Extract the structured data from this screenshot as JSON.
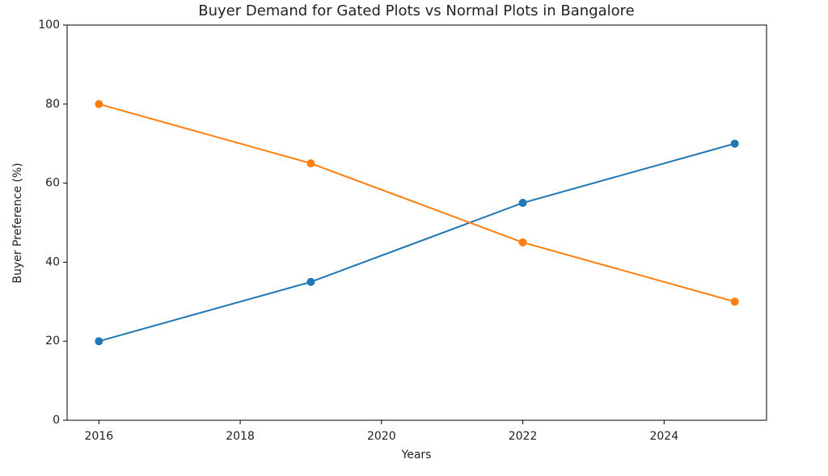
{
  "chart_data": {
    "type": "line",
    "title": "Buyer Demand for Gated Plots vs Normal Plots in Bangalore",
    "x_label": "Years",
    "y_label": "Buyer Preference (%)",
    "x": [
      2016,
      2019,
      2022,
      2025
    ],
    "series": [
      {
        "color": "#1f77b4",
        "values": [
          20,
          35,
          55,
          70
        ]
      },
      {
        "color": "#ff7f0e",
        "values": [
          80,
          65,
          45,
          30
        ]
      }
    ],
    "xlim": [
      2015.55,
      2025.45
    ],
    "xticks": [
      2016,
      2018,
      2020,
      2022,
      2024
    ],
    "ylim": [
      0,
      100
    ],
    "yticks": [
      0,
      20,
      40,
      60,
      80,
      100
    ]
  }
}
